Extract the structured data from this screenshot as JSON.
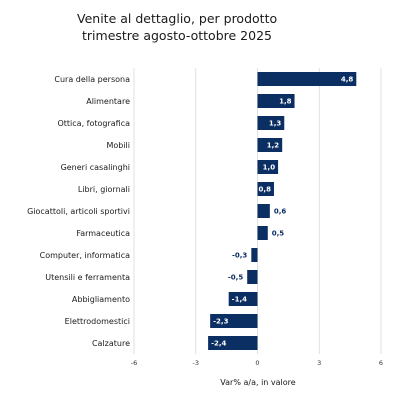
{
  "colors": {
    "bar": "#0b2e63",
    "grid": "#d8d8d8",
    "label_inside": "#ffffff",
    "label_outside": "#0b2e63"
  },
  "chart_data": {
    "type": "bar",
    "orientation": "horizontal",
    "title": [
      "Venite al dettaglio, per prodotto",
      "trimestre agosto-ottobre 2025"
    ],
    "xlabel": "Var% a/a, in valore",
    "xlim": [
      -6,
      6
    ],
    "xticks": [
      -6,
      -3,
      0,
      3,
      6
    ],
    "grid": true,
    "categories": [
      "Cura della persona",
      "Alimentare",
      "Ottica, fotografica",
      "Mobili",
      "Generi casalinghi",
      "Libri, giornali",
      "Giocattoli, articoli sportivi",
      "Farmaceutica",
      "Computer, informatica",
      "Utensili e ferramenta",
      "Abbigliamento",
      "Elettrodomestici",
      "Calzature"
    ],
    "values": [
      4.8,
      1.8,
      1.3,
      1.2,
      1.0,
      0.8,
      0.6,
      0.5,
      -0.3,
      -0.5,
      -1.4,
      -2.3,
      -2.4
    ],
    "value_labels": [
      "4,8",
      "1,8",
      "1,3",
      "1,2",
      "1,0",
      "0,8",
      "0,6",
      "0,5",
      "-0,3",
      "-0,5",
      "-1,4",
      "-2,3",
      "-2,4"
    ],
    "tick_labels": [
      "-6",
      "-3",
      "0",
      "3",
      "6"
    ]
  }
}
